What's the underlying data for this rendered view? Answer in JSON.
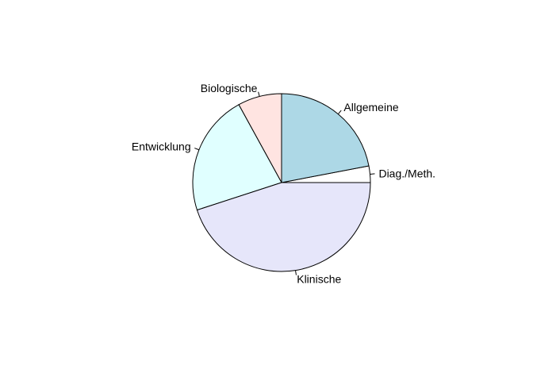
{
  "chart_data": {
    "type": "pie",
    "title": "",
    "start_angle_deg": 0,
    "direction": "counterclockwise",
    "slices": [
      {
        "label": "Diag./Meth.",
        "value": 3,
        "color": "#FFFFFF"
      },
      {
        "label": "Allgemeine",
        "value": 22,
        "color": "#ADD8E6"
      },
      {
        "label": "Biologische",
        "value": 8,
        "color": "#FFE4E1"
      },
      {
        "label": "Entwicklung",
        "value": 22,
        "color": "#E0FFFF"
      },
      {
        "label": "Klinische",
        "value": 45,
        "color": "#E6E6FA"
      }
    ]
  }
}
